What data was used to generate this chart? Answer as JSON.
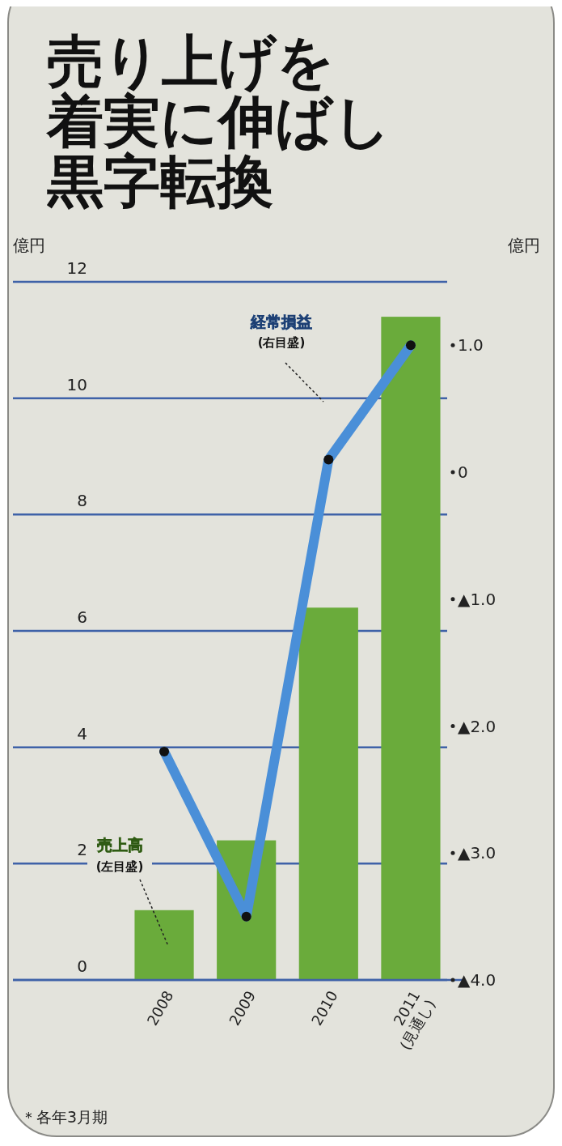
{
  "chart_data": {
    "type": "bar",
    "title": "売り上げを着実に伸ばし黒字転換",
    "ylabel": "億円",
    "y2label": "億円",
    "categories": [
      "2008",
      "2009",
      "2010",
      "2011\n(見通し)"
    ],
    "series": [
      {
        "name": "売上高",
        "color": "#6aab3b",
        "values": [
          1.2,
          2.4,
          6.4,
          11.4
        ]
      },
      {
        "name": "経常損益",
        "type": "line",
        "axis": "y2",
        "color": "#4a8fd8",
        "values": [
          -2.2,
          -3.5,
          0.1,
          1.0
        ]
      }
    ],
    "ylim": [
      0,
      12
    ],
    "yticks": [
      0,
      2,
      4,
      6,
      8,
      10,
      12
    ],
    "y2lim": [
      -4,
      1.5
    ],
    "y2ticks": [
      {
        "value": -4,
        "label": "▲4.0"
      },
      {
        "value": -3,
        "label": "▲3.0"
      },
      {
        "value": -2,
        "label": "▲2.0"
      },
      {
        "value": -1,
        "label": "▲1.0"
      },
      {
        "value": 0,
        "label": "0"
      },
      {
        "value": 1,
        "label": "1.0"
      }
    ],
    "grid": "y",
    "marker": "circle",
    "line_style": "solid",
    "annotations": [
      "(左目盛)",
      "(右目盛)",
      "＊各年3月期"
    ]
  }
}
